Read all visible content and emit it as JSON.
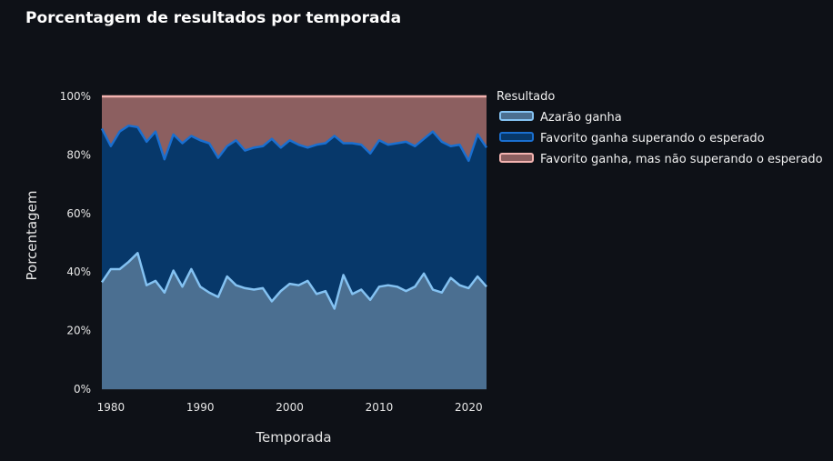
{
  "chart_data": {
    "type": "area",
    "stacked": true,
    "normalized": true,
    "title": "Porcentagem de resultados por temporada",
    "xlabel": "Temporada",
    "ylabel": "Porcentagem",
    "xlim": [
      1979,
      2022
    ],
    "ylim": [
      0,
      100
    ],
    "x_ticks": [
      1980,
      1990,
      2000,
      2010,
      2020
    ],
    "y_ticks": [
      0,
      20,
      40,
      60,
      80,
      100
    ],
    "y_tick_labels": [
      "0%",
      "20%",
      "40%",
      "60%",
      "80%",
      "100%"
    ],
    "legend_title": "Resultado",
    "legend_position": "right",
    "grid": true,
    "x": [
      1979,
      1980,
      1981,
      1982,
      1983,
      1984,
      1985,
      1986,
      1987,
      1988,
      1989,
      1990,
      1991,
      1992,
      1993,
      1994,
      1995,
      1996,
      1997,
      1998,
      1999,
      2000,
      2001,
      2002,
      2003,
      2004,
      2005,
      2006,
      2007,
      2008,
      2009,
      2010,
      2011,
      2012,
      2013,
      2014,
      2015,
      2016,
      2017,
      2018,
      2019,
      2020,
      2021,
      2022
    ],
    "series": [
      {
        "name": "Azarão ganha",
        "color": "#84c2f2",
        "fill": "#4b6f91",
        "values": [
          36.5,
          41,
          41,
          43.5,
          46.5,
          35.5,
          37,
          33,
          40.5,
          35,
          41,
          35,
          33,
          31.5,
          38.5,
          35.5,
          34.5,
          34,
          34.5,
          30,
          33.5,
          36,
          35.5,
          37,
          32.5,
          33.5,
          27.5,
          39,
          32.5,
          34,
          30.5,
          35,
          35.5,
          35,
          33.5,
          35,
          39.5,
          34,
          33,
          38,
          35.5,
          34.5,
          38.5,
          35
        ]
      },
      {
        "name": "Favorito ganha superando o esperado",
        "color": "#1a6fd0",
        "fill": "#07386a",
        "values": [
          52.5,
          42,
          47,
          46.5,
          43,
          49,
          51,
          45.5,
          46.5,
          49,
          45.5,
          50,
          51,
          47.5,
          44.5,
          49.5,
          47,
          48.5,
          48.5,
          55.5,
          49,
          49,
          48,
          45.5,
          51,
          50.5,
          59,
          45,
          51.5,
          49.5,
          50,
          50,
          48,
          49,
          51,
          48,
          46,
          54,
          51.5,
          45,
          48,
          43.5,
          48.5,
          47.5
        ]
      },
      {
        "name": "Favorito ganha, mas não superando o esperado",
        "color": "#f3b3b0",
        "fill": "#8c5f60",
        "values": [
          11,
          17,
          12,
          10,
          10.5,
          15.5,
          12,
          21.5,
          13,
          16,
          13.5,
          15,
          16,
          21,
          17,
          15,
          18.5,
          17.5,
          17,
          14.5,
          17.5,
          15,
          16.5,
          17.5,
          16.5,
          16,
          13.5,
          16,
          16,
          16.5,
          19.5,
          15,
          16.5,
          16,
          15.5,
          17,
          14.5,
          12,
          15.5,
          17,
          16.5,
          22,
          13,
          17.5
        ]
      }
    ]
  }
}
